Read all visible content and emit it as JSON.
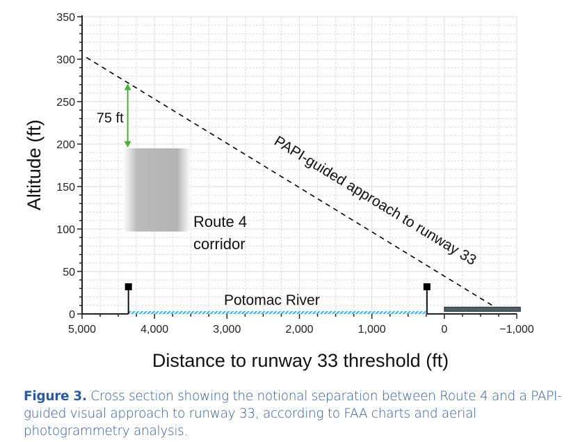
{
  "chart_data": {
    "type": "line",
    "title": "",
    "xlabel": "Distance to runway 33 threshold (ft)",
    "ylabel": "Altitude (ft)",
    "xlim": [
      5000,
      -1000
    ],
    "ylim": [
      0,
      350
    ],
    "x_reversed": true,
    "x_ticks": [
      5000,
      4000,
      3000,
      2000,
      1000,
      0,
      -1000
    ],
    "x_tick_labels": [
      "5,000",
      "4,000",
      "3,000",
      "2,000",
      "1,000",
      "0",
      "−1,000"
    ],
    "y_ticks": [
      0,
      50,
      100,
      150,
      200,
      250,
      300,
      350
    ],
    "y_tick_labels": [
      "0",
      "50",
      "100",
      "150",
      "200",
      "250",
      "300",
      "350"
    ],
    "grid": true,
    "series": [
      {
        "name": "PAPI-guided approach to runway 33",
        "style": "dashed",
        "color": "#000000",
        "points": [
          [
            4940,
            302
          ],
          [
            -700,
            8
          ]
        ]
      }
    ],
    "regions": [
      {
        "label": "Route 4 corridor",
        "x": [
          4435,
          3500
        ],
        "y": [
          97,
          195
        ],
        "color": "#b5b5b5"
      },
      {
        "label": "Potomac River",
        "x": [
          4360,
          240
        ],
        "y": [
          0,
          0
        ],
        "color": "#2ab7ea"
      },
      {
        "label": "runway",
        "x": [
          0,
          -1050
        ],
        "y": [
          3,
          8
        ],
        "color": "#4f5f66"
      }
    ],
    "markers": [
      {
        "x": 4360,
        "y": 32
      },
      {
        "x": 240,
        "y": 32
      }
    ],
    "annotations": [
      {
        "text": "75 ft",
        "x": 4370,
        "y_from": 196,
        "y_to": 271,
        "color": "#4caf3a"
      }
    ]
  },
  "caption": {
    "label": "Figure 3.",
    "text": " Cross section showing the notional separation between Route 4 and a PAPI-guided visual approach to runway 33, according to FAA charts and aerial photogrammetry analysis."
  }
}
